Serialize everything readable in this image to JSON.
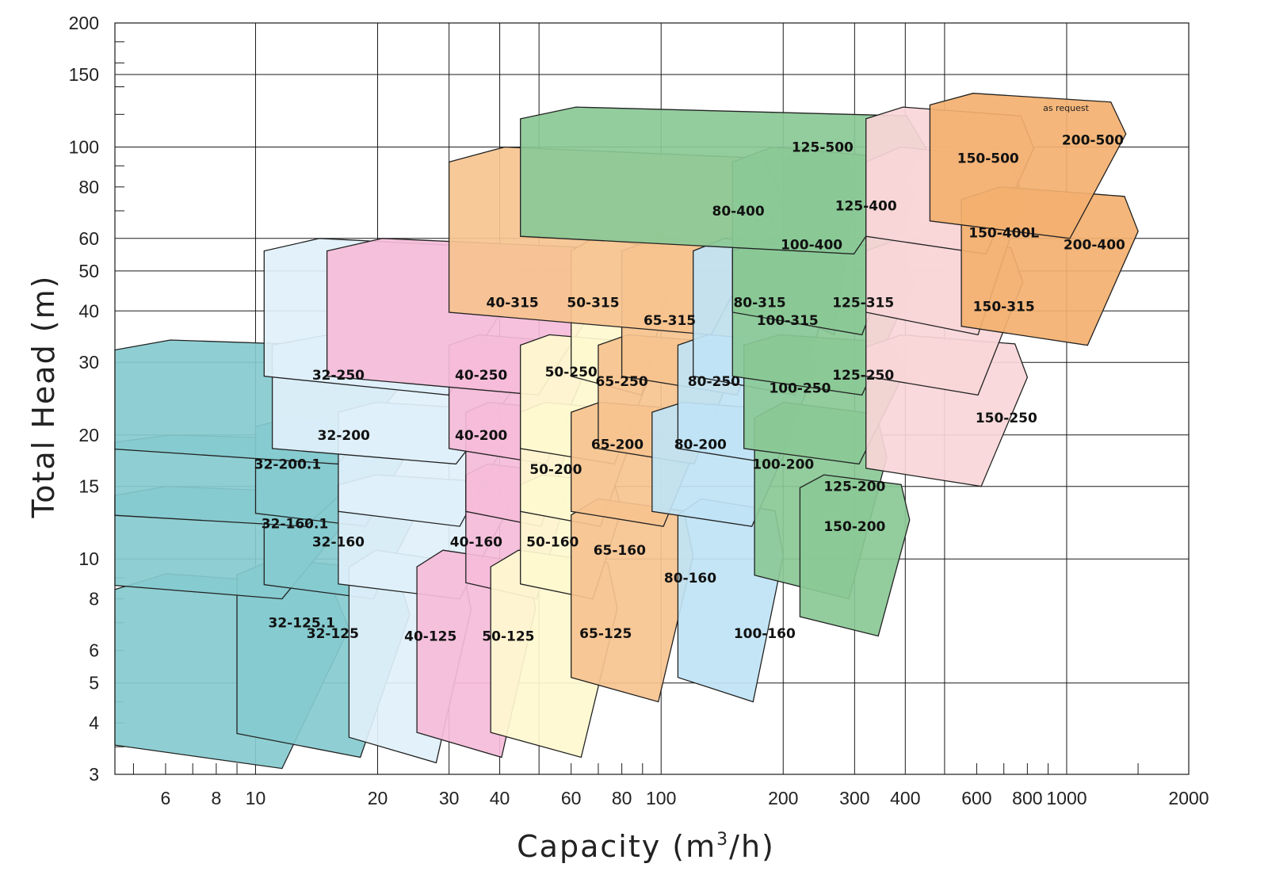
{
  "chart_data": {
    "type": "area",
    "xlabel": "Capacity (m",
    "xlabel_sup": "3",
    "xlabel_tail": "/h)",
    "ylabel": "Total Head (m)",
    "x_scale": "log",
    "y_scale": "log",
    "xlim": [
      4.5,
      2000
    ],
    "ylim": [
      3,
      200
    ],
    "x_ticks": [
      6,
      8,
      10,
      20,
      30,
      40,
      60,
      80,
      100,
      200,
      300,
      400,
      600,
      800,
      1000,
      2000
    ],
    "y_ticks": [
      3,
      4,
      5,
      6,
      8,
      10,
      15,
      20,
      30,
      40,
      50,
      60,
      80,
      100,
      150,
      200
    ],
    "grid": true,
    "annotation": "as request",
    "colors": {
      "teal": "#85cbcf",
      "lightblue": "#dff0fa",
      "pink": "#f5bcd9",
      "yellow": "#fff8cf",
      "orange": "#f6c38f",
      "blue": "#bfe3f5",
      "green": "#8ac996",
      "rose": "#f9d6d8",
      "darkorange": "#f3b06f"
    },
    "regions": [
      {
        "label": "32-125.1",
        "color": "teal",
        "q_range": [
          4.5,
          17
        ],
        "h_range": [
          3.1,
          9.2
        ],
        "label_at": [
          13,
          7
        ]
      },
      {
        "label": "32-125",
        "color": "teal",
        "q_range": [
          9,
          24
        ],
        "h_range": [
          3.3,
          10
        ],
        "label_at": [
          15.5,
          6.6
        ]
      },
      {
        "label": "32-160.1",
        "color": "teal",
        "q_range": [
          4.5,
          17
        ],
        "h_range": [
          8,
          15
        ],
        "label_at": [
          12.5,
          12.2
        ]
      },
      {
        "label": "32-160",
        "color": "teal",
        "q_range": [
          10.5,
          25
        ],
        "h_range": [
          8,
          15.5
        ],
        "label_at": [
          16,
          11
        ]
      },
      {
        "label": "32-200.1",
        "color": "teal",
        "q_range": [
          4.5,
          20
        ],
        "h_range": [
          12,
          20
        ],
        "label_at": [
          12,
          17
        ]
      },
      {
        "label": "32-200",
        "color": "teal",
        "q_range": [
          10,
          24
        ],
        "h_range": [
          12,
          22
        ],
        "label_at": [
          16.5,
          20
        ]
      },
      {
        "label": "32-250",
        "color": "teal",
        "q_range": [
          4.5,
          24
        ],
        "h_range": [
          17,
          34
        ],
        "label_at": [
          16,
          28
        ]
      },
      {
        "label": "40-125",
        "color": "lightblue",
        "q_range": [
          17,
          34
        ],
        "h_range": [
          3.2,
          10.5
        ],
        "label_at": [
          27,
          6.5
        ]
      },
      {
        "label": "40-160",
        "color": "lightblue",
        "q_range": [
          16,
          42
        ],
        "h_range": [
          8,
          16
        ],
        "label_at": [
          35,
          11
        ]
      },
      {
        "label": "40-200",
        "color": "lightblue",
        "q_range": [
          16,
          42
        ],
        "h_range": [
          12,
          24
        ],
        "label_at": [
          36,
          20
        ]
      },
      {
        "label": "40-250",
        "color": "lightblue",
        "q_range": [
          11,
          47
        ],
        "h_range": [
          17,
          35
        ],
        "label_at": [
          36,
          28
        ]
      },
      {
        "label": "40-315",
        "color": "lightblue",
        "q_range": [
          10.5,
          45
        ],
        "h_range": [
          25,
          60
        ],
        "label_at": [
          43,
          42
        ]
      },
      {
        "label": "50-125",
        "color": "pink",
        "q_range": [
          25,
          49
        ],
        "h_range": [
          3.3,
          10.5
        ],
        "label_at": [
          42,
          6.5
        ]
      },
      {
        "label": "50-160",
        "color": "pink",
        "q_range": [
          33,
          58
        ],
        "h_range": [
          8,
          17
        ],
        "label_at": [
          54,
          11
        ]
      },
      {
        "label": "50-200",
        "color": "pink",
        "q_range": [
          33,
          60
        ],
        "h_range": [
          12,
          24
        ],
        "label_at": [
          55,
          16.5
        ]
      },
      {
        "label": "50-250",
        "color": "pink",
        "q_range": [
          30,
          65
        ],
        "h_range": [
          17,
          35
        ],
        "label_at": [
          60,
          28.5
        ]
      },
      {
        "label": "50-315",
        "color": "pink",
        "q_range": [
          15,
          75
        ],
        "h_range": [
          25,
          60
        ],
        "label_at": [
          68,
          42
        ]
      },
      {
        "label": "65-125",
        "color": "yellow",
        "q_range": [
          38,
          78
        ],
        "h_range": [
          3.3,
          10.5
        ],
        "label_at": [
          73,
          6.6
        ]
      },
      {
        "label": "65-160",
        "color": "yellow",
        "q_range": [
          45,
          80
        ],
        "h_range": [
          8,
          16
        ],
        "label_at": [
          79,
          10.5
        ]
      },
      {
        "label": "65-200",
        "color": "yellow",
        "q_range": [
          45,
          85
        ],
        "h_range": [
          12,
          24
        ],
        "label_at": [
          78,
          19
        ]
      },
      {
        "label": "65-250",
        "color": "yellow",
        "q_range": [
          45,
          95
        ],
        "h_range": [
          17,
          35
        ],
        "label_at": [
          80,
          27
        ]
      },
      {
        "label": "65-315",
        "color": "yellow",
        "q_range": [
          60,
          105
        ],
        "h_range": [
          25,
          60
        ],
        "label_at": [
          105,
          38
        ]
      },
      {
        "label": "80-160",
        "color": "orange",
        "q_range": [
          60,
          120
        ],
        "h_range": [
          4.5,
          14
        ],
        "label_at": [
          118,
          9
        ]
      },
      {
        "label": "80-200",
        "color": "orange",
        "q_range": [
          60,
          125
        ],
        "h_range": [
          12,
          24
        ],
        "label_at": [
          125,
          19
        ]
      },
      {
        "label": "80-250",
        "color": "orange",
        "q_range": [
          70,
          150
        ],
        "h_range": [
          17,
          35
        ],
        "label_at": [
          135,
          27
        ]
      },
      {
        "label": "80-315",
        "color": "orange",
        "q_range": [
          80,
          200
        ],
        "h_range": [
          25,
          60
        ],
        "label_at": [
          175,
          42
        ]
      },
      {
        "label": "80-400",
        "color": "orange",
        "q_range": [
          30,
          200
        ],
        "h_range": [
          35,
          100
        ],
        "label_at": [
          155,
          70
        ]
      },
      {
        "label": "100-160",
        "color": "blue",
        "q_range": [
          110,
          200
        ],
        "h_range": [
          4.5,
          14
        ],
        "label_at": [
          180,
          6.6
        ]
      },
      {
        "label": "100-200",
        "color": "blue",
        "q_range": [
          95,
          210
        ],
        "h_range": [
          12,
          24
        ],
        "label_at": [
          200,
          17
        ]
      },
      {
        "label": "100-250",
        "color": "blue",
        "q_range": [
          110,
          240
        ],
        "h_range": [
          17,
          35
        ],
        "label_at": [
          220,
          26
        ]
      },
      {
        "label": "100-315",
        "color": "blue",
        "q_range": [
          120,
          270
        ],
        "h_range": [
          25,
          60
        ],
        "label_at": [
          205,
          38
        ]
      },
      {
        "label": "100-400",
        "color": "blue",
        "q_range": [
          200,
          300
        ],
        "h_range": [
          35,
          100
        ],
        "label_at": [
          235,
          58
        ]
      },
      {
        "label": "125-200",
        "color": "green",
        "q_range": [
          170,
          360
        ],
        "h_range": [
          8,
          24
        ],
        "label_at": [
          300,
          15
        ]
      },
      {
        "label": "125-250",
        "color": "green",
        "q_range": [
          160,
          400
        ],
        "h_range": [
          17,
          35
        ],
        "label_at": [
          315,
          28
        ]
      },
      {
        "label": "125-315",
        "color": "green",
        "q_range": [
          150,
          420
        ],
        "h_range": [
          25,
          60
        ],
        "label_at": [
          315,
          42
        ]
      },
      {
        "label": "125-400",
        "color": "green",
        "q_range": [
          150,
          420
        ],
        "h_range": [
          35,
          100
        ],
        "label_at": [
          320,
          72
        ]
      },
      {
        "label": "125-500",
        "color": "green",
        "q_range": [
          45,
          450
        ],
        "h_range": [
          55,
          125
        ],
        "label_at": [
          250,
          100
        ]
      },
      {
        "label": "150-200",
        "color": "green",
        "q_range": [
          220,
          410
        ],
        "h_range": [
          6.5,
          16
        ],
        "label_at": [
          300,
          12
        ]
      },
      {
        "label": "150-250",
        "color": "rose",
        "q_range": [
          320,
          800
        ],
        "h_range": [
          15,
          35
        ],
        "label_at": [
          710,
          22
        ]
      },
      {
        "label": "150-315",
        "color": "rose",
        "q_range": [
          320,
          780
        ],
        "h_range": [
          25,
          60
        ],
        "label_at": [
          700,
          41
        ]
      },
      {
        "label": "150-400L",
        "color": "rose",
        "q_range": [
          320,
          780
        ],
        "h_range": [
          35,
          100
        ],
        "label_at": [
          700,
          62
        ]
      },
      {
        "label": "150-500",
        "color": "rose",
        "q_range": [
          320,
          830
        ],
        "h_range": [
          55,
          125
        ],
        "label_at": [
          640,
          94
        ]
      },
      {
        "label": "200-400",
        "color": "darkorange",
        "q_range": [
          550,
          1500
        ],
        "h_range": [
          33,
          80
        ],
        "label_at": [
          1170,
          58
        ]
      },
      {
        "label": "200-500",
        "color": "darkorange",
        "q_range": [
          460,
          1400
        ],
        "h_range": [
          60,
          135
        ],
        "label_at": [
          1160,
          104
        ]
      }
    ]
  }
}
